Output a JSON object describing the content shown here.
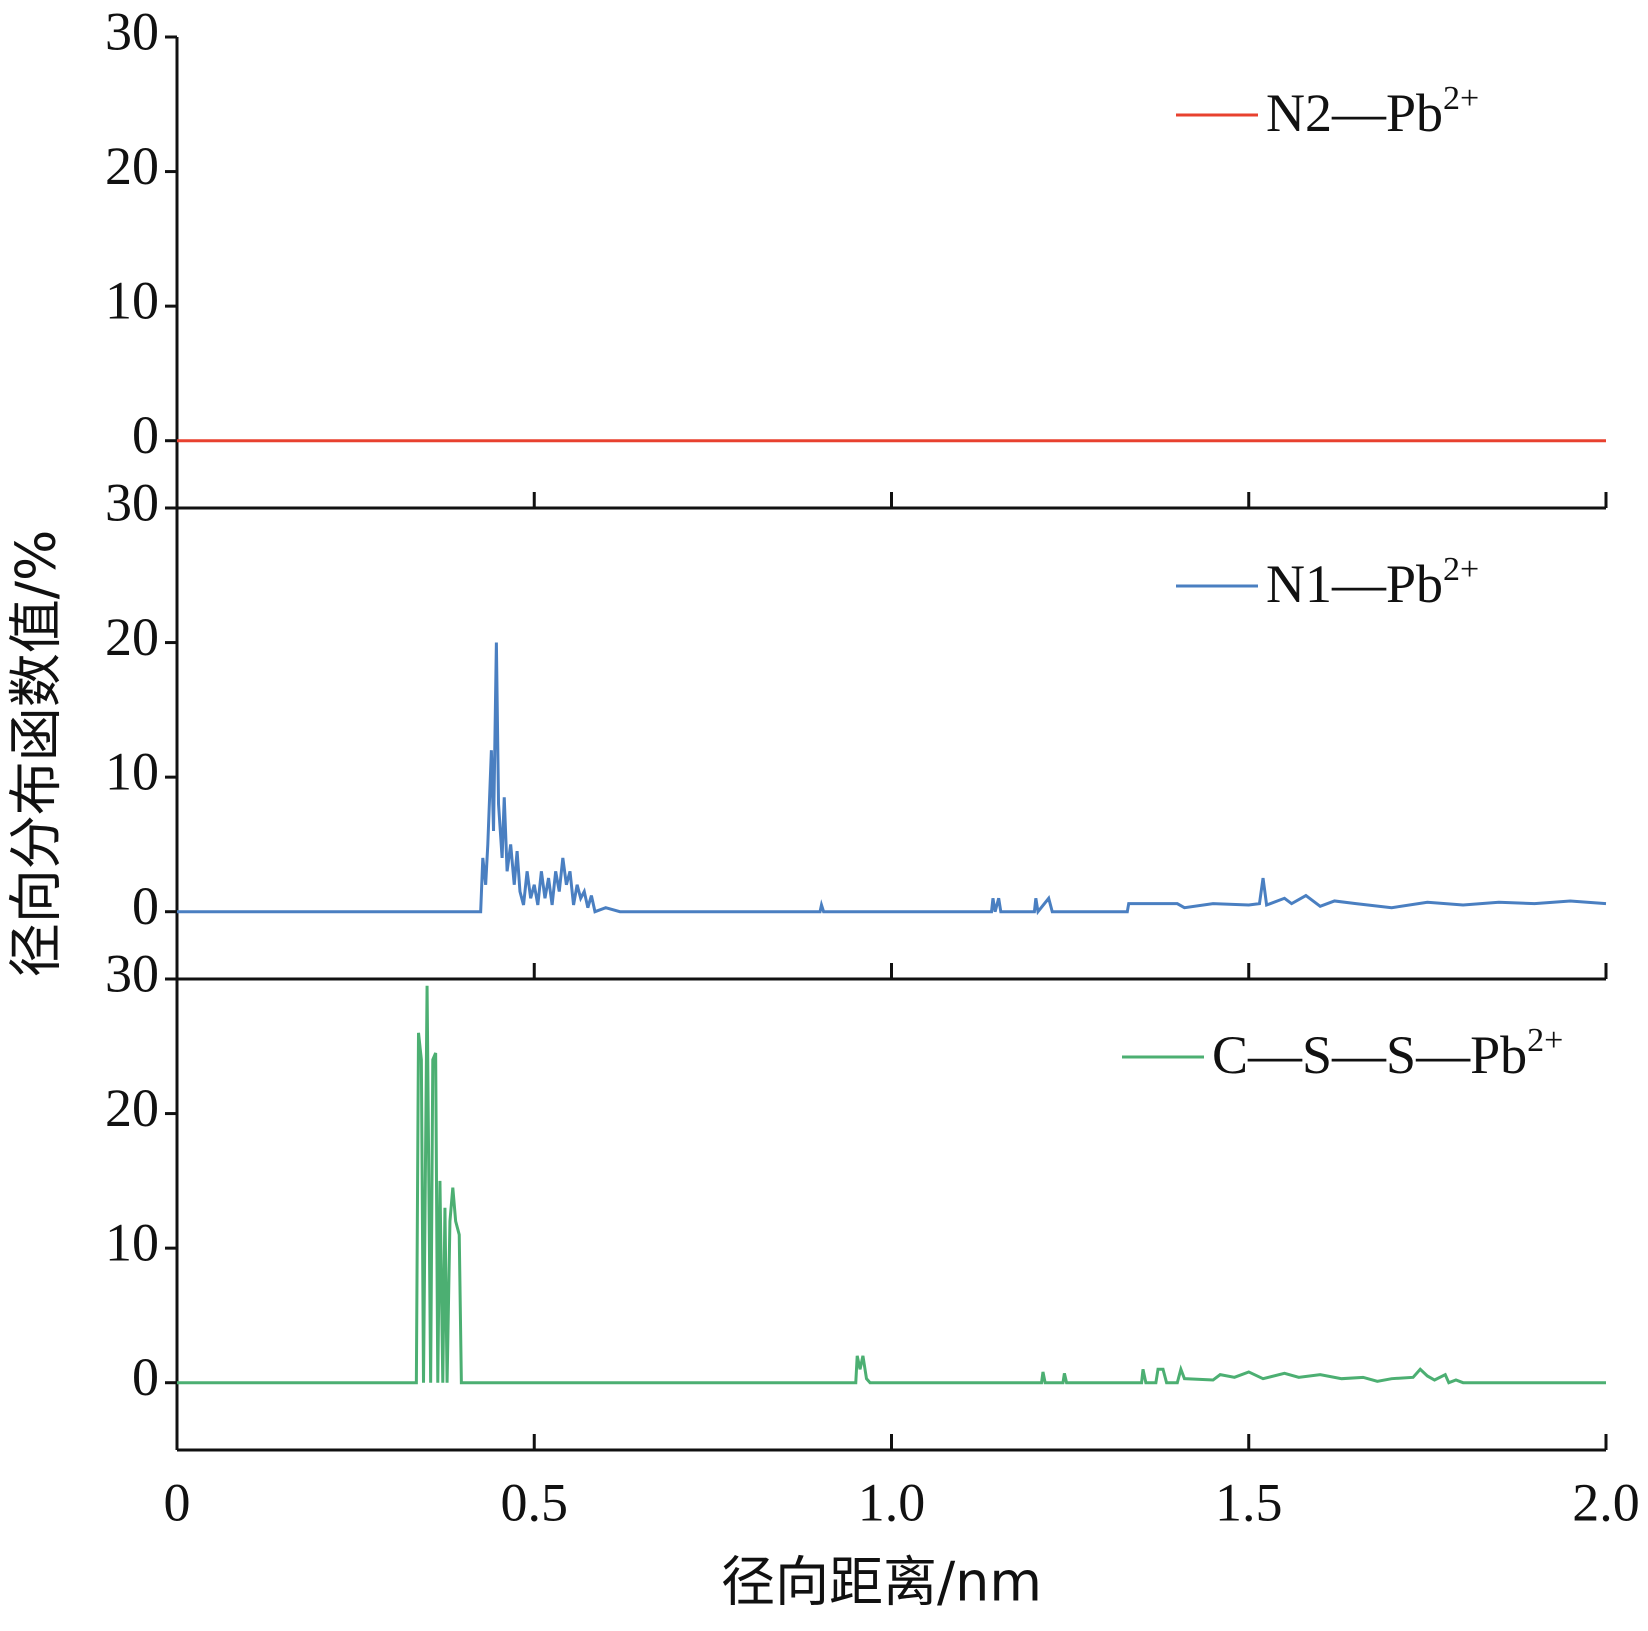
{
  "chart_data": [
    {
      "type": "line",
      "x": [
        0,
        2
      ],
      "series": [
        {
          "name": "N2—Pb2+",
          "color": "#e8412f",
          "values": [
            0,
            0
          ]
        }
      ],
      "xlim": [
        0,
        2
      ],
      "xticks": [
        0,
        0.5,
        {
          "value": 1,
          "label": "1.0"
        },
        1.5,
        {
          "value": 2,
          "label": "2.0"
        }
      ],
      "ylim": [
        -5,
        30
      ],
      "yticks": [
        0,
        10,
        20,
        30
      ],
      "legend": "upper right"
    },
    {
      "type": "line",
      "ylabel": "径向分布函数值/%",
      "x": [
        0,
        0.425,
        0.428,
        0.432,
        0.435,
        0.44,
        0.443,
        0.447,
        0.45,
        0.455,
        0.458,
        0.462,
        0.467,
        0.472,
        0.476,
        0.48,
        0.485,
        0.49,
        0.495,
        0.5,
        0.505,
        0.51,
        0.515,
        0.52,
        0.525,
        0.53,
        0.535,
        0.54,
        0.545,
        0.55,
        0.555,
        0.56,
        0.565,
        0.57,
        0.575,
        0.58,
        0.585,
        0.6,
        0.62,
        0.9,
        0.902,
        0.905,
        1.14,
        1.142,
        1.145,
        1.15,
        1.153,
        1.2,
        1.202,
        1.205,
        1.22,
        1.225,
        1.33,
        1.332,
        1.4,
        1.41,
        1.45,
        1.5,
        1.515,
        1.52,
        1.525,
        1.55,
        1.56,
        1.58,
        1.6,
        1.62,
        1.65,
        1.7,
        1.75,
        1.8,
        1.85,
        1.9,
        1.95,
        2.0
      ],
      "series": [
        {
          "name": "N1—Pb2+",
          "color": "#4a7fc1",
          "values": [
            0,
            0,
            4,
            2,
            5,
            12,
            6,
            20,
            8,
            4,
            8.5,
            3,
            5,
            2,
            4.5,
            1.5,
            0.5,
            3,
            1,
            2,
            0.5,
            3,
            1,
            2.5,
            0.5,
            3,
            1.5,
            4,
            2,
            3,
            0.5,
            2,
            1,
            1.5,
            0.3,
            1.2,
            0,
            0.3,
            0,
            0,
            0.5,
            0,
            0,
            1,
            0,
            1,
            0,
            0,
            1,
            0,
            1,
            0,
            0,
            0.6,
            0.6,
            0.3,
            0.6,
            0.5,
            0.6,
            2.5,
            0.5,
            1,
            0.6,
            1.2,
            0.4,
            0.8,
            0.6,
            0.3,
            0.7,
            0.5,
            0.7,
            0.6,
            0.8,
            0.6
          ]
        }
      ],
      "xlim": [
        0,
        2
      ],
      "xticks": [
        0,
        0.5,
        {
          "value": 1,
          "label": "1.0"
        },
        1.5,
        {
          "value": 2,
          "label": "2.0"
        }
      ],
      "ylim": [
        -5,
        30
      ],
      "yticks": [
        0,
        10,
        20,
        30
      ],
      "legend": "upper right"
    },
    {
      "type": "line",
      "xlabel": "径向距离/nm",
      "x": [
        0,
        0.335,
        0.338,
        0.342,
        0.345,
        0.35,
        0.355,
        0.358,
        0.362,
        0.365,
        0.368,
        0.372,
        0.375,
        0.378,
        0.382,
        0.386,
        0.39,
        0.395,
        0.398,
        0.95,
        0.952,
        0.956,
        0.96,
        0.965,
        0.97,
        1.21,
        1.212,
        1.215,
        1.24,
        1.242,
        1.245,
        1.35,
        1.352,
        1.356,
        1.37,
        1.373,
        1.38,
        1.385,
        1.4,
        1.405,
        1.41,
        1.45,
        1.46,
        1.48,
        1.5,
        1.52,
        1.55,
        1.57,
        1.6,
        1.63,
        1.66,
        1.68,
        1.7,
        1.73,
        1.74,
        1.75,
        1.76,
        1.775,
        1.78,
        1.79,
        1.8,
        2.0
      ],
      "series": [
        {
          "name": "C—S—S—Pb2+",
          "color": "#4caf72",
          "values": [
            0,
            0,
            26,
            24,
            0,
            29.5,
            0,
            24,
            24.5,
            0,
            15,
            0,
            13,
            0,
            12,
            14.5,
            12,
            11,
            0,
            0,
            2,
            1,
            2,
            0.3,
            0,
            0,
            0.8,
            0,
            0,
            0.7,
            0,
            0,
            1,
            0,
            0,
            1,
            1,
            0,
            0,
            1,
            0.3,
            0.2,
            0.6,
            0.4,
            0.8,
            0.3,
            0.7,
            0.4,
            0.6,
            0.3,
            0.4,
            0.1,
            0.3,
            0.4,
            1,
            0.5,
            0.2,
            0.6,
            0,
            0.2,
            0,
            0
          ]
        }
      ],
      "xlim": [
        0,
        2
      ],
      "xticks": [
        0,
        0.5,
        {
          "value": 1,
          "label": "1.0"
        },
        1.5,
        {
          "value": 2,
          "label": "2.0"
        }
      ],
      "ylim": [
        -5,
        30
      ],
      "yticks": [
        0,
        10,
        20,
        30
      ],
      "legend": "upper right"
    }
  ]
}
